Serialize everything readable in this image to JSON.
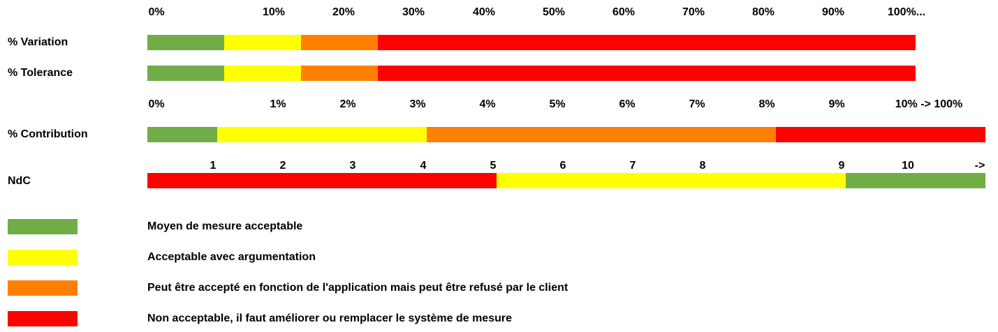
{
  "colors": {
    "green": "#70AD47",
    "yellow": "#FFFF00",
    "orange": "#FF8000",
    "red": "#FF0000"
  },
  "chart_data": {
    "type": "bar",
    "scales": [
      {
        "ticks": [
          "0%",
          "10%",
          "20%",
          "30%",
          "40%",
          "50%",
          "60%",
          "70%",
          "80%",
          "90%",
          "100%..."
        ],
        "rows": [
          {
            "label": "% Variation",
            "segments": [
              {
                "from": 0,
                "to": 10,
                "color": "green"
              },
              {
                "from": 10,
                "to": 20,
                "color": "yellow"
              },
              {
                "from": 20,
                "to": 30,
                "color": "orange"
              },
              {
                "from": 30,
                "to": 100,
                "color": "red"
              }
            ]
          },
          {
            "label": "% Tolerance",
            "segments": [
              {
                "from": 0,
                "to": 10,
                "color": "green"
              },
              {
                "from": 10,
                "to": 20,
                "color": "yellow"
              },
              {
                "from": 20,
                "to": 30,
                "color": "orange"
              },
              {
                "from": 30,
                "to": 100,
                "color": "red"
              }
            ]
          }
        ]
      },
      {
        "ticks": [
          "0%",
          "1%",
          "2%",
          "3%",
          "4%",
          "5%",
          "6%",
          "7%",
          "8%",
          "9%",
          "10% -> 100%"
        ],
        "rows": [
          {
            "label": "% Contribution",
            "segments": [
              {
                "from": 0,
                "to": 1,
                "color": "green"
              },
              {
                "from": 1,
                "to": 4,
                "color": "yellow"
              },
              {
                "from": 4,
                "to": 9,
                "color": "orange"
              },
              {
                "from": 9,
                "to": 100,
                "color": "red"
              }
            ]
          }
        ]
      },
      {
        "ticks": [
          "1",
          "2",
          "3",
          "4",
          "5",
          "6",
          "7",
          "8",
          "9",
          "10",
          "->"
        ],
        "rows": [
          {
            "label": "NdC",
            "segments": [
              {
                "from": 0,
                "to": 5,
                "color": "red"
              },
              {
                "from": 5,
                "to": 10,
                "color": "yellow"
              },
              {
                "from": 10,
                "to": 12,
                "color": "green"
              }
            ]
          }
        ]
      }
    ],
    "legend": [
      {
        "color": "green",
        "label": "Moyen de mesure acceptable"
      },
      {
        "color": "yellow",
        "label": "Acceptable avec argumentation"
      },
      {
        "color": "orange",
        "label": "Peut être accepté en fonction de l'application mais peut être refusé par le client"
      },
      {
        "color": "red",
        "label": "Non acceptable,  il faut améliorer ou remplacer le système de mesure"
      }
    ]
  }
}
